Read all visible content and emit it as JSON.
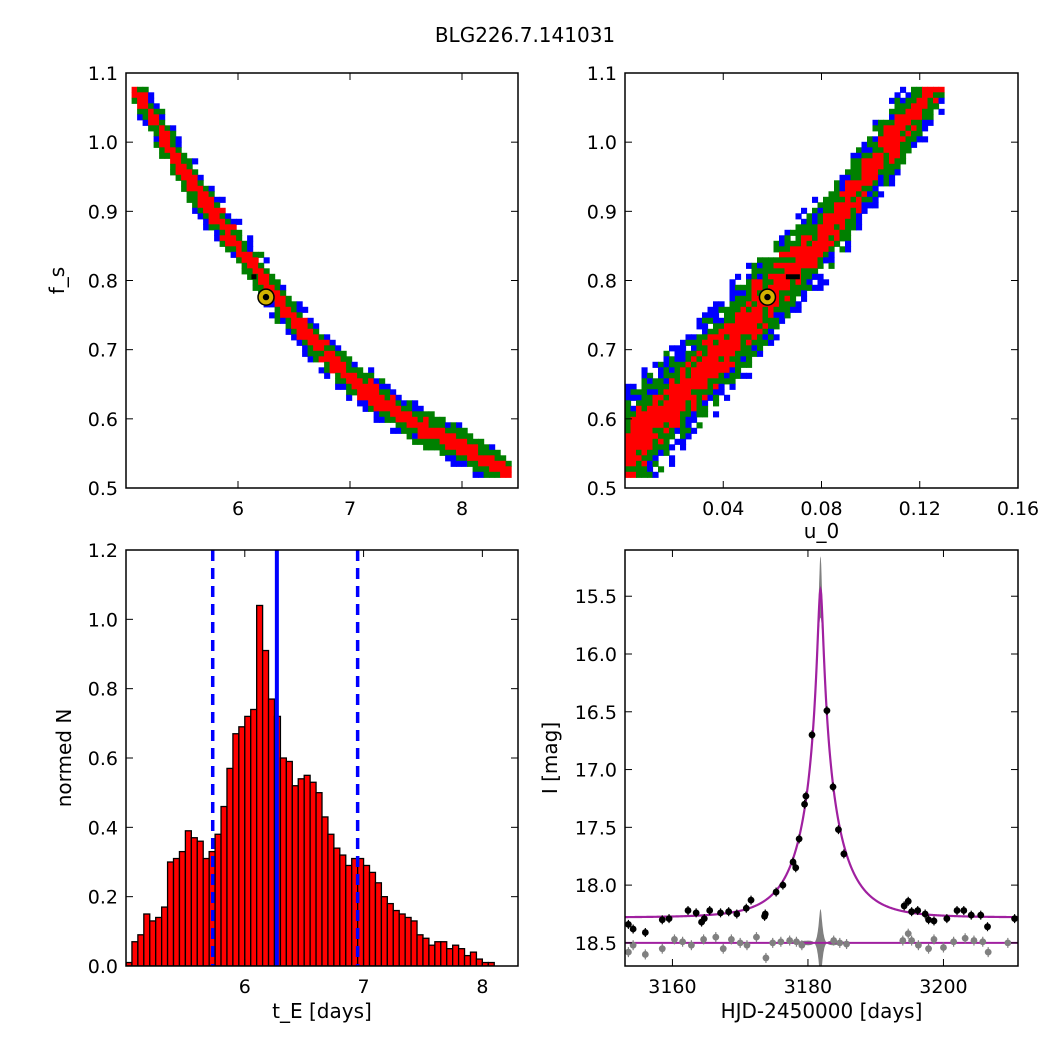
{
  "figure": {
    "title": "BLG226.7.141031"
  },
  "colors": {
    "red": "#ff0000",
    "green": "#008000",
    "blue": "#0000ff",
    "black": "#000000",
    "gray": "#808080",
    "magenta": "#a020a0",
    "gold": "#d4b200"
  },
  "chart_data": [
    {
      "type": "heatmap",
      "panel": "top-left",
      "xlabel": "",
      "ylabel": "f_s",
      "xlim": [
        5.0,
        8.5
      ],
      "ylim": [
        0.5,
        1.1
      ],
      "xticks": [
        6,
        7,
        8
      ],
      "yticks": [
        0.5,
        0.6,
        0.7,
        0.8,
        0.9,
        1.0,
        1.1
      ],
      "levels": [
        "red",
        "green",
        "blue"
      ],
      "centerline": [
        [
          5.1,
          1.075
        ],
        [
          5.5,
          0.96
        ],
        [
          6.0,
          0.85
        ],
        [
          6.5,
          0.74
        ],
        [
          7.0,
          0.66
        ],
        [
          7.5,
          0.6
        ],
        [
          8.0,
          0.56
        ],
        [
          8.35,
          0.525
        ]
      ],
      "best_fit": {
        "x": 6.25,
        "y": 0.776
      }
    },
    {
      "type": "heatmap",
      "panel": "top-right",
      "xlabel": "u_0",
      "ylabel": "",
      "xlim": [
        0.0,
        0.16
      ],
      "ylim": [
        0.5,
        1.1
      ],
      "xticks": [
        0.04,
        0.08,
        0.12,
        0.16
      ],
      "xtick_labels": [
        "0.04",
        "0.08",
        "0.12",
        "0.16"
      ],
      "yticks": [
        0.5,
        0.6,
        0.7,
        0.8,
        0.9,
        1.0,
        1.1
      ],
      "levels": [
        "red",
        "green",
        "blue"
      ],
      "centerline": [
        [
          0.0,
          0.55
        ],
        [
          0.02,
          0.625
        ],
        [
          0.04,
          0.7
        ],
        [
          0.058,
          0.776
        ],
        [
          0.08,
          0.86
        ],
        [
          0.1,
          0.96
        ],
        [
          0.125,
          1.08
        ]
      ],
      "best_fit": {
        "x": 0.058,
        "y": 0.776
      }
    },
    {
      "type": "bar",
      "panel": "bottom-left",
      "xlabel": "t_E [days]",
      "ylabel": "normed N",
      "xlim": [
        5.0,
        8.3
      ],
      "ylim": [
        0.0,
        1.2
      ],
      "xticks": [
        6,
        7,
        8
      ],
      "yticks": [
        0.0,
        0.2,
        0.4,
        0.6,
        0.8,
        1.0,
        1.2
      ],
      "bin_start": 5.0,
      "bin_width": 0.05,
      "values": [
        0.01,
        0.07,
        0.09,
        0.15,
        0.13,
        0.14,
        0.17,
        0.3,
        0.31,
        0.33,
        0.39,
        0.37,
        0.36,
        0.31,
        0.33,
        0.38,
        0.46,
        0.57,
        0.67,
        0.69,
        0.72,
        0.74,
        1.04,
        0.91,
        0.77,
        0.72,
        0.6,
        0.59,
        0.52,
        0.54,
        0.55,
        0.53,
        0.5,
        0.43,
        0.38,
        0.34,
        0.32,
        0.29,
        0.31,
        0.31,
        0.29,
        0.27,
        0.24,
        0.2,
        0.18,
        0.16,
        0.15,
        0.14,
        0.13,
        0.09,
        0.08,
        0.06,
        0.07,
        0.07,
        0.05,
        0.06,
        0.05,
        0.03,
        0.04,
        0.02,
        0.01,
        0.01,
        0.0,
        0.0,
        0.0,
        0.0
      ],
      "median_line": 6.27,
      "interval_lines": [
        5.73,
        6.95
      ]
    },
    {
      "type": "scatter",
      "panel": "bottom-right",
      "xlabel": "HJD-2450000 [days]",
      "ylabel": "I [mag]",
      "xlim": [
        3153,
        3211
      ],
      "ylim": [
        18.7,
        15.1
      ],
      "xticks": [
        3160,
        3180,
        3200
      ],
      "yticks": [
        15.5,
        16.0,
        16.5,
        17.0,
        17.5,
        18.0,
        18.5
      ],
      "ytick_labels": [
        "15.5",
        "16.0",
        "16.5",
        "17.0",
        "17.5",
        "18.0",
        "18.5"
      ],
      "model": {
        "t0": 3181.85,
        "u0": 0.058,
        "tE": 6.25,
        "fs": 0.776,
        "I_base": 18.28
      },
      "data_points": [
        [
          3153.5,
          18.34
        ],
        [
          3154.2,
          18.38
        ],
        [
          3156.0,
          18.41
        ],
        [
          3158.5,
          18.3
        ],
        [
          3159.5,
          18.29
        ],
        [
          3162.3,
          18.22
        ],
        [
          3163.5,
          18.24
        ],
        [
          3164.3,
          18.32
        ],
        [
          3164.7,
          18.29
        ],
        [
          3165.5,
          18.22
        ],
        [
          3167.1,
          18.24
        ],
        [
          3168.3,
          18.23
        ],
        [
          3169.5,
          18.25
        ],
        [
          3170.9,
          18.2
        ],
        [
          3171.6,
          18.13
        ],
        [
          3173.6,
          18.27
        ],
        [
          3173.7,
          18.25
        ],
        [
          3175.3,
          18.06
        ],
        [
          3176.3,
          18.0
        ],
        [
          3177.8,
          17.8
        ],
        [
          3178.2,
          17.85
        ],
        [
          3178.7,
          17.6
        ],
        [
          3179.5,
          17.3
        ],
        [
          3179.7,
          17.23
        ],
        [
          3180.6,
          16.7
        ],
        [
          3182.8,
          16.49
        ],
        [
          3183.7,
          17.15
        ],
        [
          3184.5,
          17.52
        ],
        [
          3185.3,
          17.73
        ],
        [
          3194.2,
          18.18
        ],
        [
          3194.8,
          18.14
        ],
        [
          3195.3,
          18.23
        ],
        [
          3196.2,
          18.22
        ],
        [
          3197.3,
          18.25
        ],
        [
          3197.8,
          18.3
        ],
        [
          3198.6,
          18.31
        ],
        [
          3200.5,
          18.29
        ],
        [
          3202.0,
          18.22
        ],
        [
          3203.0,
          18.22
        ],
        [
          3204.1,
          18.26
        ],
        [
          3205.5,
          18.26
        ],
        [
          3206.5,
          18.36
        ],
        [
          3210.5,
          18.29
        ]
      ],
      "residual_points": [
        [
          3153.5,
          18.58
        ],
        [
          3154.2,
          18.52
        ],
        [
          3156.0,
          18.6
        ],
        [
          3158.5,
          18.55
        ],
        [
          3160.3,
          18.47
        ],
        [
          3161.5,
          18.49
        ],
        [
          3162.8,
          18.52
        ],
        [
          3164.6,
          18.47
        ],
        [
          3166.4,
          18.45
        ],
        [
          3167.5,
          18.55
        ],
        [
          3168.7,
          18.47
        ],
        [
          3170.0,
          18.5
        ],
        [
          3171.0,
          18.52
        ],
        [
          3172.4,
          18.45
        ],
        [
          3173.8,
          18.63
        ],
        [
          3174.8,
          18.5
        ],
        [
          3176.0,
          18.49
        ],
        [
          3177.3,
          18.48
        ],
        [
          3178.3,
          18.49
        ],
        [
          3179.1,
          18.52
        ],
        [
          3183.8,
          18.48
        ],
        [
          3184.7,
          18.5
        ],
        [
          3185.7,
          18.51
        ],
        [
          3194.0,
          18.48
        ],
        [
          3194.8,
          18.42
        ],
        [
          3195.3,
          18.48
        ],
        [
          3196.3,
          18.52
        ],
        [
          3197.8,
          18.55
        ],
        [
          3198.6,
          18.47
        ],
        [
          3200.0,
          18.54
        ],
        [
          3201.5,
          18.49
        ],
        [
          3203.2,
          18.46
        ],
        [
          3204.5,
          18.48
        ],
        [
          3205.8,
          18.49
        ],
        [
          3206.6,
          18.58
        ],
        [
          3209.5,
          18.5
        ]
      ]
    }
  ]
}
